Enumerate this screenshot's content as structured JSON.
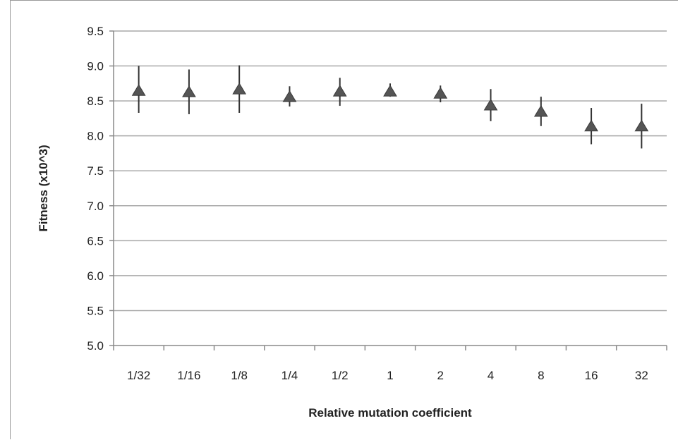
{
  "chart_data": {
    "type": "scatter",
    "title": "",
    "xlabel": "Relative mutation coefficient",
    "ylabel": "Fitness (x10^3)",
    "categories": [
      "1/32",
      "1/16",
      "1/8",
      "1/4",
      "1/2",
      "1",
      "2",
      "4",
      "8",
      "16",
      "32"
    ],
    "series": [
      {
        "marker": "triangle",
        "color": "#555555",
        "values": [
          8.64,
          8.62,
          8.66,
          8.55,
          8.63,
          8.63,
          8.6,
          8.43,
          8.34,
          8.13,
          8.13
        ],
        "error_low": [
          8.33,
          8.31,
          8.33,
          8.42,
          8.43,
          8.56,
          8.48,
          8.21,
          8.14,
          7.88,
          7.82
        ],
        "error_high": [
          9.0,
          8.95,
          9.01,
          8.71,
          8.83,
          8.75,
          8.72,
          8.67,
          8.56,
          8.4,
          8.46
        ]
      }
    ],
    "ylim": [
      5.0,
      9.5
    ],
    "yticks": [
      "5.0",
      "5.5",
      "6.0",
      "6.5",
      "7.0",
      "7.5",
      "8.0",
      "8.5",
      "9.0",
      "9.5"
    ],
    "grid": true,
    "legend": "none",
    "colors": {
      "gridline": "#a8a8a8",
      "axis": "#8a8a8a",
      "marker": "#555555",
      "errorbar": "#333333"
    }
  }
}
